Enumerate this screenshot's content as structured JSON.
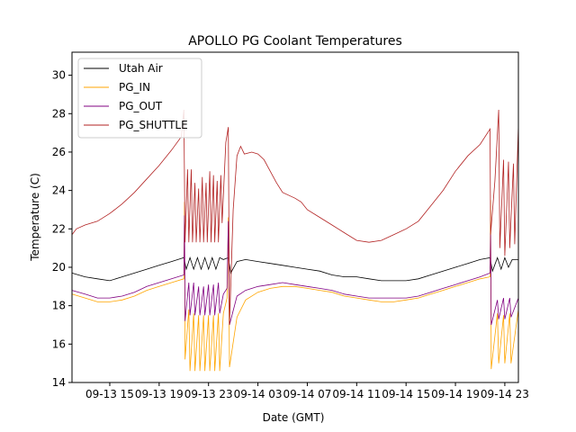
{
  "chart_data": {
    "type": "line",
    "title": "APOLLO PG Coolant Temperatures",
    "xlabel": "Date (GMT)",
    "ylabel": "Temperature (C)",
    "x_units": "hours since 09-13 00:00 GMT",
    "xlim": [
      11.94,
      48.1
    ],
    "ylim": [
      14,
      31.2
    ],
    "x_ticks": [
      {
        "value": 15,
        "label": "09-13 15"
      },
      {
        "value": 19,
        "label": "09-13 19"
      },
      {
        "value": 23,
        "label": "09-13 23"
      },
      {
        "value": 27,
        "label": "09-14 03"
      },
      {
        "value": 31,
        "label": "09-14 07"
      },
      {
        "value": 35,
        "label": "09-14 11"
      },
      {
        "value": 39,
        "label": "09-14 15"
      },
      {
        "value": 43,
        "label": "09-14 19"
      },
      {
        "value": 47,
        "label": "09-14 23"
      }
    ],
    "y_ticks": [
      14,
      16,
      18,
      20,
      22,
      24,
      26,
      28,
      30
    ],
    "grid": false,
    "legend_position": "top-left",
    "series": [
      {
        "name": "Utah Air",
        "color": "#000000",
        "points": [
          [
            11.94,
            19.7
          ],
          [
            13,
            19.5
          ],
          [
            14,
            19.4
          ],
          [
            15,
            19.3
          ],
          [
            16,
            19.5
          ],
          [
            17,
            19.7
          ],
          [
            18,
            19.9
          ],
          [
            19,
            20.1
          ],
          [
            20,
            20.3
          ],
          [
            21,
            20.5
          ],
          [
            21.2,
            19.9
          ],
          [
            21.5,
            20.5
          ],
          [
            21.8,
            19.9
          ],
          [
            22.1,
            20.5
          ],
          [
            22.4,
            19.9
          ],
          [
            22.7,
            20.5
          ],
          [
            23,
            19.9
          ],
          [
            23.3,
            20.5
          ],
          [
            23.6,
            19.9
          ],
          [
            23.9,
            20.5
          ],
          [
            24.2,
            20.4
          ],
          [
            24.6,
            20.5
          ],
          [
            24.8,
            19.7
          ],
          [
            25.3,
            20.3
          ],
          [
            26,
            20.4
          ],
          [
            27,
            20.3
          ],
          [
            28,
            20.2
          ],
          [
            29,
            20.1
          ],
          [
            30,
            20.0
          ],
          [
            31,
            19.9
          ],
          [
            32,
            19.8
          ],
          [
            33,
            19.6
          ],
          [
            34,
            19.5
          ],
          [
            35,
            19.5
          ],
          [
            36,
            19.4
          ],
          [
            37,
            19.3
          ],
          [
            38,
            19.3
          ],
          [
            39,
            19.3
          ],
          [
            40,
            19.4
          ],
          [
            41,
            19.6
          ],
          [
            42,
            19.8
          ],
          [
            43,
            20.0
          ],
          [
            44,
            20.2
          ],
          [
            45,
            20.4
          ],
          [
            45.8,
            20.5
          ],
          [
            46,
            19.8
          ],
          [
            46.4,
            20.5
          ],
          [
            46.7,
            19.9
          ],
          [
            47,
            20.5
          ],
          [
            47.3,
            20.0
          ],
          [
            47.6,
            20.4
          ],
          [
            48.1,
            20.4
          ]
        ]
      },
      {
        "name": "PG_IN",
        "color": "#ffa500",
        "points": [
          [
            11.94,
            18.6
          ],
          [
            13,
            18.4
          ],
          [
            14,
            18.2
          ],
          [
            15,
            18.2
          ],
          [
            16,
            18.3
          ],
          [
            17,
            18.5
          ],
          [
            18,
            18.8
          ],
          [
            19,
            19.0
          ],
          [
            20,
            19.2
          ],
          [
            21,
            19.4
          ],
          [
            21.05,
            23.4
          ],
          [
            21.1,
            15.2
          ],
          [
            21.4,
            17.8
          ],
          [
            21.5,
            14.6
          ],
          [
            21.8,
            17.6
          ],
          [
            21.9,
            14.6
          ],
          [
            22.2,
            17.5
          ],
          [
            22.3,
            14.6
          ],
          [
            22.6,
            17.5
          ],
          [
            22.7,
            14.6
          ],
          [
            23,
            17.5
          ],
          [
            23.1,
            14.6
          ],
          [
            23.4,
            17.5
          ],
          [
            23.5,
            14.6
          ],
          [
            23.8,
            17.6
          ],
          [
            23.9,
            14.6
          ],
          [
            24.2,
            17.6
          ],
          [
            24.5,
            18.4
          ],
          [
            24.6,
            22.6
          ],
          [
            24.7,
            14.8
          ],
          [
            25.3,
            17.4
          ],
          [
            26,
            18.3
          ],
          [
            27,
            18.7
          ],
          [
            28,
            18.9
          ],
          [
            29,
            19.0
          ],
          [
            30,
            19.0
          ],
          [
            31,
            18.9
          ],
          [
            32,
            18.8
          ],
          [
            33,
            18.7
          ],
          [
            34,
            18.5
          ],
          [
            35,
            18.4
          ],
          [
            36,
            18.3
          ],
          [
            37,
            18.2
          ],
          [
            38,
            18.2
          ],
          [
            39,
            18.3
          ],
          [
            40,
            18.4
          ],
          [
            41,
            18.6
          ],
          [
            42,
            18.8
          ],
          [
            43,
            19.0
          ],
          [
            44,
            19.2
          ],
          [
            45,
            19.4
          ],
          [
            45.8,
            19.5
          ],
          [
            45.85,
            23.5
          ],
          [
            45.9,
            14.7
          ],
          [
            46.4,
            17.6
          ],
          [
            46.5,
            15.0
          ],
          [
            46.9,
            17.5
          ],
          [
            47.0,
            15.0
          ],
          [
            47.4,
            17.6
          ],
          [
            47.5,
            15.0
          ],
          [
            48.1,
            17.8
          ]
        ]
      },
      {
        "name": "PG_OUT",
        "color": "#800080",
        "points": [
          [
            11.94,
            18.8
          ],
          [
            13,
            18.6
          ],
          [
            14,
            18.4
          ],
          [
            15,
            18.4
          ],
          [
            16,
            18.5
          ],
          [
            17,
            18.7
          ],
          [
            18,
            19.0
          ],
          [
            19,
            19.2
          ],
          [
            20,
            19.4
          ],
          [
            21,
            19.6
          ],
          [
            21.05,
            22.7
          ],
          [
            21.1,
            17.2
          ],
          [
            21.4,
            19.2
          ],
          [
            21.5,
            17.5
          ],
          [
            21.8,
            19.2
          ],
          [
            21.9,
            17.5
          ],
          [
            22.2,
            19.0
          ],
          [
            22.3,
            17.5
          ],
          [
            22.6,
            19.0
          ],
          [
            22.7,
            17.5
          ],
          [
            23,
            19.1
          ],
          [
            23.1,
            17.5
          ],
          [
            23.4,
            19.1
          ],
          [
            23.5,
            17.5
          ],
          [
            23.8,
            19.2
          ],
          [
            23.9,
            17.6
          ],
          [
            24.2,
            18.6
          ],
          [
            24.5,
            18.9
          ],
          [
            24.6,
            22.4
          ],
          [
            24.7,
            17.0
          ],
          [
            25.3,
            18.5
          ],
          [
            26,
            18.8
          ],
          [
            27,
            19.0
          ],
          [
            28,
            19.1
          ],
          [
            29,
            19.2
          ],
          [
            30,
            19.1
          ],
          [
            31,
            19.0
          ],
          [
            32,
            18.9
          ],
          [
            33,
            18.8
          ],
          [
            34,
            18.6
          ],
          [
            35,
            18.5
          ],
          [
            36,
            18.4
          ],
          [
            37,
            18.4
          ],
          [
            38,
            18.4
          ],
          [
            39,
            18.4
          ],
          [
            40,
            18.5
          ],
          [
            41,
            18.7
          ],
          [
            42,
            18.9
          ],
          [
            43,
            19.1
          ],
          [
            44,
            19.3
          ],
          [
            45,
            19.5
          ],
          [
            45.8,
            19.7
          ],
          [
            45.85,
            21.8
          ],
          [
            45.9,
            17.0
          ],
          [
            46.4,
            18.3
          ],
          [
            46.5,
            17.3
          ],
          [
            46.9,
            18.4
          ],
          [
            47.0,
            17.3
          ],
          [
            47.4,
            18.4
          ],
          [
            47.5,
            17.4
          ],
          [
            48.1,
            18.4
          ]
        ]
      },
      {
        "name": "PG_SHUTTLE",
        "color": "#b22222",
        "points": [
          [
            11.94,
            21.7
          ],
          [
            12.3,
            22.0
          ],
          [
            13,
            22.2
          ],
          [
            14,
            22.4
          ],
          [
            15,
            22.8
          ],
          [
            16,
            23.3
          ],
          [
            17,
            23.9
          ],
          [
            18,
            24.6
          ],
          [
            19,
            25.3
          ],
          [
            20,
            26.1
          ],
          [
            20.8,
            26.8
          ],
          [
            21,
            28.2
          ],
          [
            21.1,
            21.3
          ],
          [
            21.3,
            25.1
          ],
          [
            21.4,
            21.3
          ],
          [
            21.6,
            25.1
          ],
          [
            21.7,
            21.3
          ],
          [
            21.9,
            24.4
          ],
          [
            22.0,
            21.3
          ],
          [
            22.2,
            24.1
          ],
          [
            22.3,
            21.3
          ],
          [
            22.5,
            24.7
          ],
          [
            22.6,
            21.3
          ],
          [
            22.8,
            24.4
          ],
          [
            22.9,
            21.3
          ],
          [
            23.1,
            25.0
          ],
          [
            23.2,
            21.3
          ],
          [
            23.4,
            24.8
          ],
          [
            23.5,
            21.3
          ],
          [
            23.7,
            24.5
          ],
          [
            23.8,
            21.3
          ],
          [
            24,
            24.8
          ],
          [
            24.1,
            22.3
          ],
          [
            24.4,
            26.5
          ],
          [
            24.6,
            27.3
          ],
          [
            24.7,
            17.0
          ],
          [
            25.0,
            23.0
          ],
          [
            25.3,
            25.8
          ],
          [
            25.6,
            26.3
          ],
          [
            25.9,
            25.9
          ],
          [
            26.5,
            26.0
          ],
          [
            27,
            25.9
          ],
          [
            27.5,
            25.6
          ],
          [
            28,
            25.0
          ],
          [
            28.5,
            24.4
          ],
          [
            29,
            23.9
          ],
          [
            30,
            23.6
          ],
          [
            30.5,
            23.4
          ],
          [
            31,
            23.0
          ],
          [
            32,
            22.6
          ],
          [
            33,
            22.2
          ],
          [
            34,
            21.8
          ],
          [
            35,
            21.4
          ],
          [
            36,
            21.3
          ],
          [
            37,
            21.4
          ],
          [
            38,
            21.7
          ],
          [
            39,
            22.0
          ],
          [
            40,
            22.4
          ],
          [
            41,
            23.2
          ],
          [
            42,
            24.0
          ],
          [
            43,
            25.0
          ],
          [
            44,
            25.8
          ],
          [
            45,
            26.4
          ],
          [
            45.8,
            27.2
          ],
          [
            45.85,
            21.7
          ],
          [
            46.2,
            24.5
          ],
          [
            46.5,
            28.2
          ],
          [
            46.6,
            21.0
          ],
          [
            46.9,
            25.6
          ],
          [
            47.0,
            20.6
          ],
          [
            47.3,
            25.5
          ],
          [
            47.4,
            21.0
          ],
          [
            47.7,
            25.4
          ],
          [
            47.8,
            21.2
          ],
          [
            48.1,
            27.4
          ]
        ]
      }
    ]
  }
}
